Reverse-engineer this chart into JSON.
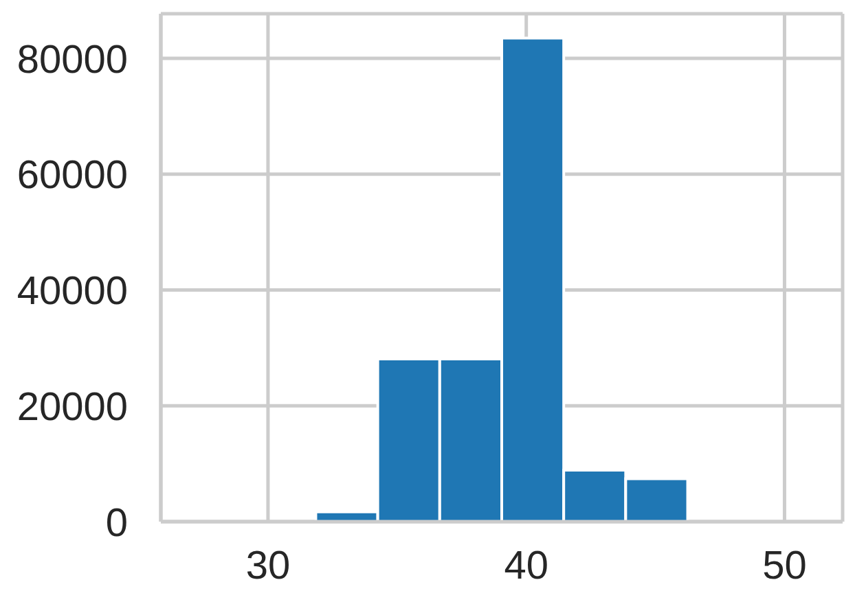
{
  "chart_data": {
    "type": "histogram",
    "bins": [
      27.05,
      29.45,
      31.85,
      34.25,
      36.65,
      39.05,
      41.45,
      43.85,
      46.25,
      48.65,
      51.05
    ],
    "values": [
      0,
      0,
      1700,
      28100,
      28100,
      83500,
      8900,
      7400,
      0,
      0
    ],
    "color": "#1f77b4",
    "xlim": [
      25.85,
      52.25
    ],
    "xticks": [
      30,
      40,
      50
    ],
    "ylim": [
      0,
      87700
    ],
    "yticks": [
      0,
      20000,
      40000,
      60000,
      80000
    ],
    "grid": true
  }
}
